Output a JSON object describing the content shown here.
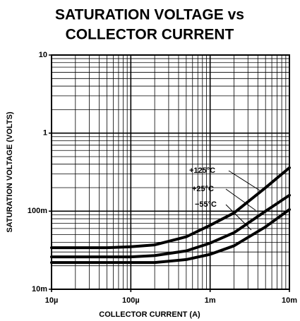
{
  "chart_data": {
    "type": "line",
    "title": [
      "SATURATION VOLTAGE vs",
      "COLLECTOR CURRENT"
    ],
    "x_label": "COLLECTOR CURRENT (A)",
    "y_label": "SATURATION VOLTAGE (VOLTS)",
    "x": [
      1e-05,
      2e-05,
      5e-05,
      0.0001,
      0.0002,
      0.0005,
      0.001,
      0.002,
      0.005,
      0.01
    ],
    "series": [
      {
        "name": "+125°C",
        "color": "#000000",
        "values": [
          0.034,
          0.034,
          0.034,
          0.035,
          0.037,
          0.047,
          0.066,
          0.095,
          0.2,
          0.36
        ]
      },
      {
        "name": "+25°C",
        "color": "#000000",
        "values": [
          0.026,
          0.026,
          0.026,
          0.026,
          0.027,
          0.031,
          0.039,
          0.053,
          0.1,
          0.16
        ]
      },
      {
        "name": "−55°C",
        "color": "#000000",
        "values": [
          0.022,
          0.022,
          0.022,
          0.022,
          0.022,
          0.024,
          0.028,
          0.036,
          0.063,
          0.105
        ]
      }
    ],
    "xlog": true,
    "ylog": true,
    "grid": true,
    "xlim": [
      1e-05,
      0.01
    ],
    "xticks": [
      {
        "value": 1e-05,
        "label": "10µ"
      },
      {
        "value": 0.0001,
        "label": "100µ"
      },
      {
        "value": 0.001,
        "label": "1m"
      },
      {
        "value": 0.01,
        "label": "10m"
      }
    ],
    "ylim": [
      0.01,
      10
    ],
    "yticks": [
      {
        "value": 0.01,
        "label": "10m"
      },
      {
        "value": 0.1,
        "label": "100m"
      },
      1,
      10
    ]
  }
}
